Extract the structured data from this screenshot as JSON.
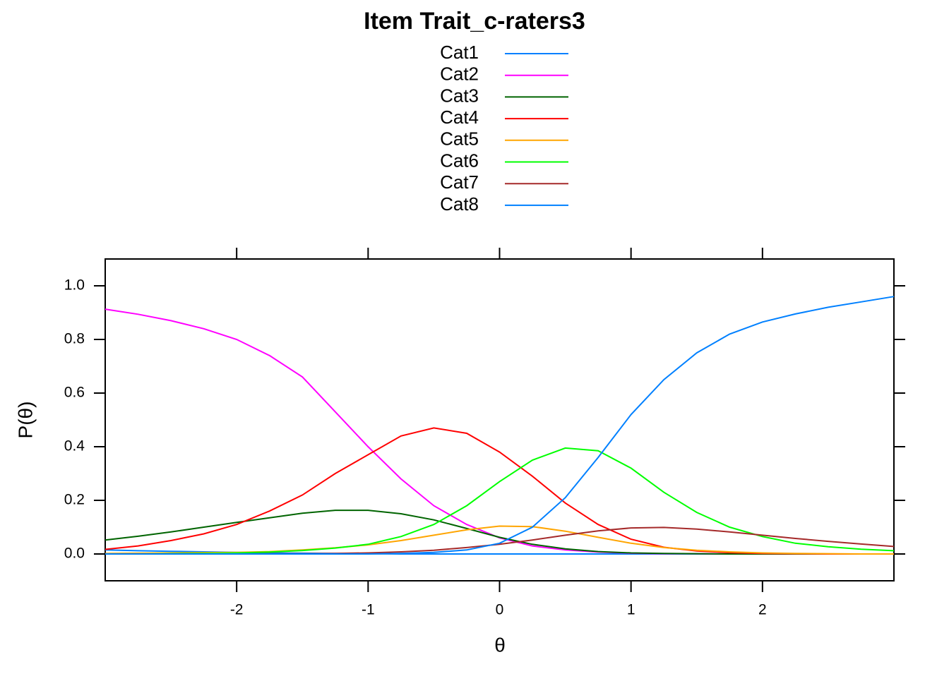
{
  "chart_data": {
    "type": "line",
    "title": "Item Trait_c-raters3",
    "x_label": "θ",
    "y_label": "P(θ)",
    "x": [
      -3,
      -2.75,
      -2.5,
      -2.25,
      -2,
      -1.75,
      -1.5,
      -1.25,
      -1,
      -0.75,
      -0.5,
      -0.25,
      0,
      0.25,
      0.5,
      0.75,
      1,
      1.25,
      1.5,
      1.75,
      2,
      2.25,
      2.5,
      2.75,
      3
    ],
    "xlim": [
      -3,
      3
    ],
    "xticks": [
      -2,
      -1,
      0,
      1,
      2
    ],
    "ylim": [
      -0.1,
      1.1
    ],
    "yticks": [
      {
        "value": 0,
        "label": "0.0"
      },
      0.2,
      0.4,
      0.6,
      0.8,
      {
        "value": 1,
        "label": "1.0"
      }
    ],
    "series": [
      {
        "name": "Cat1",
        "color": "#0080ff",
        "values": [
          0.015,
          0.012,
          0.01,
          0.008,
          0.006,
          0.004,
          0.003,
          0.002,
          0.001,
          0,
          0,
          0,
          0,
          0,
          0,
          0,
          0,
          0,
          0,
          0,
          0,
          0,
          0,
          0,
          0
        ]
      },
      {
        "name": "Cat2",
        "color": "#ff00ff",
        "values": [
          0.913,
          0.894,
          0.87,
          0.84,
          0.8,
          0.74,
          0.66,
          0.53,
          0.4,
          0.28,
          0.18,
          0.11,
          0.06,
          0.03,
          0.015,
          0.007,
          0.003,
          0.001,
          0.001,
          0,
          0,
          0,
          0,
          0,
          0
        ]
      },
      {
        "name": "Cat3",
        "color": "#006400",
        "values": [
          0.052,
          0.066,
          0.082,
          0.1,
          0.118,
          0.135,
          0.152,
          0.163,
          0.163,
          0.15,
          0.127,
          0.095,
          0.062,
          0.036,
          0.019,
          0.009,
          0.004,
          0.002,
          0.001,
          0,
          0,
          0,
          0,
          0,
          0
        ]
      },
      {
        "name": "Cat4",
        "color": "#ff0000",
        "values": [
          0.017,
          0.03,
          0.05,
          0.075,
          0.11,
          0.16,
          0.22,
          0.3,
          0.37,
          0.44,
          0.47,
          0.45,
          0.38,
          0.29,
          0.19,
          0.11,
          0.055,
          0.025,
          0.011,
          0.005,
          0.002,
          0.001,
          0,
          0,
          0
        ]
      },
      {
        "name": "Cat5",
        "color": "#ffa500",
        "values": [
          0.002,
          0.003,
          0.004,
          0.005,
          0.006,
          0.009,
          0.015,
          0.023,
          0.034,
          0.05,
          0.07,
          0.09,
          0.104,
          0.102,
          0.085,
          0.062,
          0.04,
          0.024,
          0.014,
          0.008,
          0.004,
          0.002,
          0.001,
          0,
          0
        ]
      },
      {
        "name": "Cat6",
        "color": "#00ff00",
        "values": [
          0,
          0,
          0.001,
          0.002,
          0.004,
          0.007,
          0.013,
          0.022,
          0.036,
          0.065,
          0.11,
          0.18,
          0.27,
          0.35,
          0.395,
          0.385,
          0.32,
          0.23,
          0.155,
          0.1,
          0.065,
          0.04,
          0.027,
          0.018,
          0.012
        ]
      },
      {
        "name": "Cat7",
        "color": "#a52a2a",
        "values": [
          0,
          0,
          0,
          0,
          0,
          0.001,
          0.001,
          0.002,
          0.004,
          0.008,
          0.014,
          0.024,
          0.036,
          0.052,
          0.07,
          0.086,
          0.097,
          0.099,
          0.093,
          0.082,
          0.07,
          0.058,
          0.047,
          0.037,
          0.028
        ]
      },
      {
        "name": "Cat8",
        "color": "#0080ff",
        "values": [
          0,
          0,
          0,
          0,
          0,
          0,
          0,
          0,
          0,
          0.002,
          0.006,
          0.015,
          0.04,
          0.1,
          0.21,
          0.36,
          0.52,
          0.65,
          0.75,
          0.82,
          0.865,
          0.895,
          0.92,
          0.94,
          0.96
        ]
      }
    ]
  }
}
